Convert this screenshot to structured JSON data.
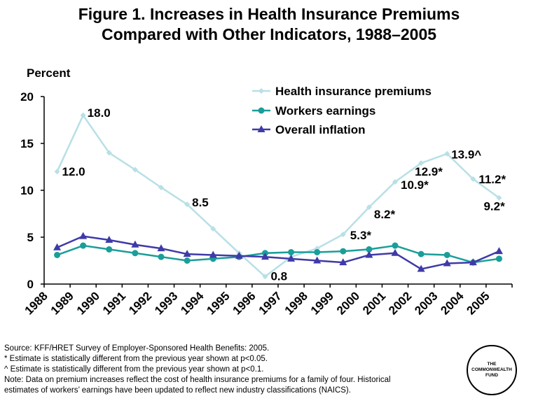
{
  "title_line1": "Figure 1. Increases in Health Insurance Premiums",
  "title_line2": "Compared with Other Indicators, 1988–2005",
  "chart_data": {
    "type": "line",
    "ylabel": "Percent",
    "ylim": [
      0,
      20
    ],
    "yticks": [
      "0",
      "5",
      "10",
      "15",
      "20"
    ],
    "categories": [
      "1988",
      "1989",
      "1990",
      "1991",
      "1992",
      "1993",
      "1994",
      "1995",
      "1996",
      "1997",
      "1998",
      "1999",
      "2000",
      "2001",
      "2002",
      "2003",
      "2004",
      "2005"
    ],
    "series": [
      {
        "name": "Health insurance premiums",
        "color": "#b8e0e6",
        "marker": "diamond",
        "values": [
          12.0,
          18.0,
          14.0,
          12.2,
          10.3,
          8.5,
          5.9,
          3.3,
          0.8,
          2.9,
          3.8,
          5.3,
          8.2,
          10.9,
          12.9,
          13.9,
          11.2,
          9.2
        ]
      },
      {
        "name": "Workers earnings",
        "color": "#1a9e99",
        "marker": "circle",
        "values": [
          3.1,
          4.1,
          3.7,
          3.3,
          2.9,
          2.5,
          2.7,
          2.9,
          3.3,
          3.4,
          3.4,
          3.5,
          3.7,
          4.1,
          3.2,
          3.1,
          2.3,
          2.7
        ]
      },
      {
        "name": "Overall inflation",
        "color": "#3f3aa8",
        "marker": "triangle",
        "values": [
          3.9,
          5.1,
          4.7,
          4.2,
          3.8,
          3.2,
          3.1,
          3.0,
          2.9,
          2.7,
          2.5,
          2.3,
          3.1,
          3.3,
          1.6,
          2.2,
          2.3,
          3.5
        ]
      }
    ],
    "annotations": [
      {
        "text": "12.0",
        "index": 0
      },
      {
        "text": "18.0",
        "index": 1
      },
      {
        "text": "8.5",
        "index": 5
      },
      {
        "text": "0.8",
        "index": 8
      },
      {
        "text": "5.3*",
        "index": 11
      },
      {
        "text": "8.2*",
        "index": 12
      },
      {
        "text": "10.9*",
        "index": 13
      },
      {
        "text": "12.9*",
        "index": 14
      },
      {
        "text": "13.9^",
        "index": 15
      },
      {
        "text": "11.2*",
        "index": 16
      },
      {
        "text": "9.2*",
        "index": 17
      }
    ],
    "legend": "top-right"
  },
  "notes": {
    "source": "Source: KFF/HRET Survey of Employer-Sponsored Health Benefits: 2005.",
    "star": "* Estimate is statistically different from the previous year shown at p<0.05.",
    "caret": "^ Estimate is statistically different from the previous year shown at p<0.1.",
    "note1": "Note: Data on premium increases reflect the cost of health insurance premiums for a family of four. Historical",
    "note2": "estimates of workers’ earnings have been updated to reflect new industry classifications (NAICS)."
  },
  "logo": {
    "line1": "THE",
    "line2": "COMMONWEALTH",
    "line3": "FUND"
  }
}
